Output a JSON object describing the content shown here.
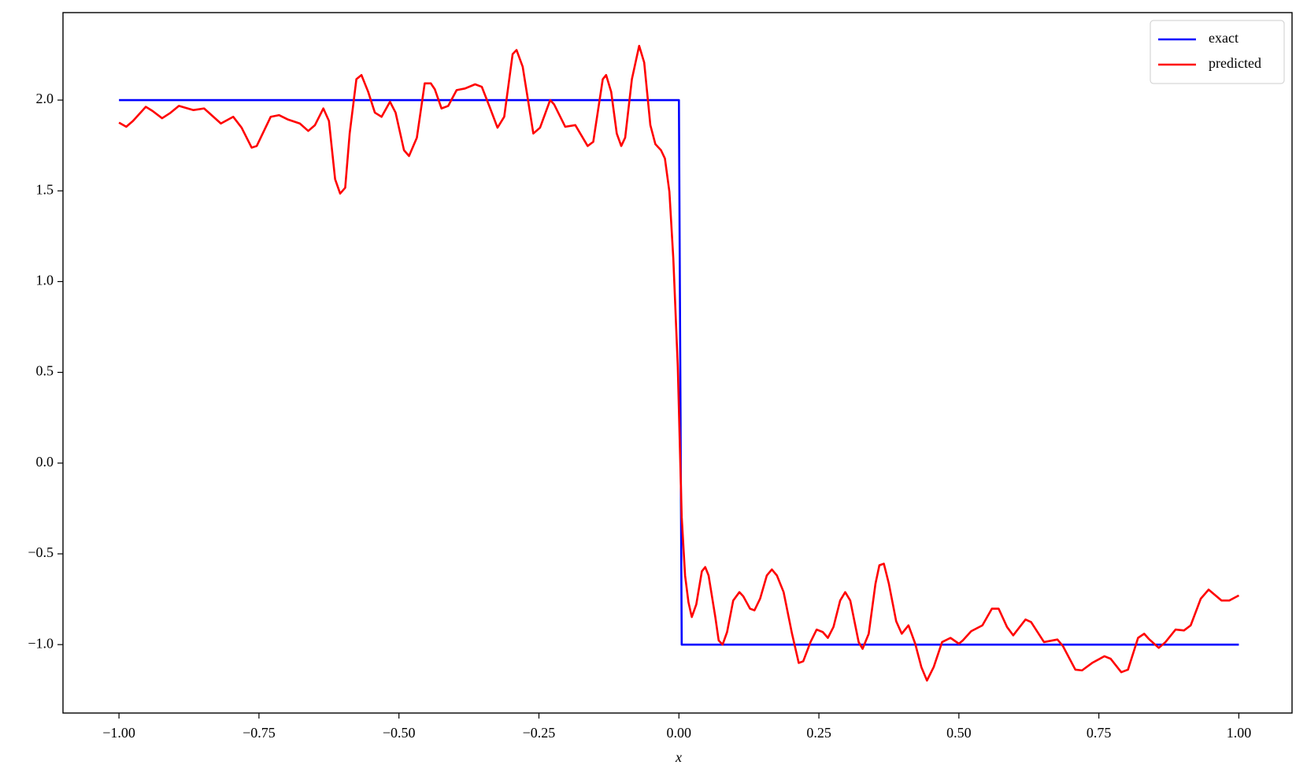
{
  "chart_data": {
    "type": "line",
    "xlabel": "x",
    "xlim": [
      -1.1,
      1.095
    ],
    "ylim": [
      -1.377,
      2.482
    ],
    "xticks": [
      {
        "value": -1,
        "label": "−1.00"
      },
      {
        "value": -0.75,
        "label": "−0.75"
      },
      {
        "value": -0.5,
        "label": "−0.50"
      },
      {
        "value": -0.25,
        "label": "−0.25"
      },
      {
        "value": 0,
        "label": "0.00"
      },
      {
        "value": 0.25,
        "label": "0.25"
      },
      {
        "value": 0.5,
        "label": "0.50"
      },
      {
        "value": 0.75,
        "label": "0.75"
      },
      {
        "value": 1,
        "label": "1.00"
      }
    ],
    "yticks": [
      {
        "value": -1,
        "label": "−1.0"
      },
      {
        "value": -0.5,
        "label": "−0.5"
      },
      {
        "value": 0,
        "label": "0.0"
      },
      {
        "value": 0.5,
        "label": "0.5"
      },
      {
        "value": 1,
        "label": "1.0"
      },
      {
        "value": 1.5,
        "label": "1.5"
      },
      {
        "value": 2,
        "label": "2.0"
      }
    ],
    "legend": "upper right",
    "series": [
      {
        "name": "exact",
        "color": "#0000ff",
        "x": [
          -1,
          0,
          0.005,
          1
        ],
        "values": [
          2,
          2,
          -1,
          -1
        ]
      },
      {
        "name": "predicted",
        "color": "#ff0000",
        "x": [
          -1,
          -0.987,
          -0.975,
          -0.952,
          -0.94,
          -0.923,
          -0.908,
          -0.893,
          -0.867,
          -0.848,
          -0.818,
          -0.796,
          -0.781,
          -0.763,
          -0.754,
          -0.729,
          -0.714,
          -0.699,
          -0.677,
          -0.662,
          -0.65,
          -0.635,
          -0.625,
          -0.614,
          -0.605,
          -0.596,
          -0.588,
          -0.576,
          -0.567,
          -0.555,
          -0.543,
          -0.531,
          -0.516,
          -0.506,
          -0.491,
          -0.482,
          -0.468,
          -0.454,
          -0.443,
          -0.436,
          -0.424,
          -0.412,
          -0.397,
          -0.382,
          -0.364,
          -0.352,
          -0.337,
          -0.324,
          -0.312,
          -0.297,
          -0.29,
          -0.279,
          -0.26,
          -0.248,
          -0.23,
          -0.223,
          -0.203,
          -0.185,
          -0.163,
          -0.153,
          -0.136,
          -0.13,
          -0.121,
          -0.111,
          -0.103,
          -0.096,
          -0.084,
          -0.071,
          -0.062,
          -0.051,
          -0.042,
          -0.032,
          -0.025,
          -0.017,
          -0.01,
          -0.002,
          0.005,
          0.011,
          0.017,
          0.023,
          0.031,
          0.041,
          0.047,
          0.053,
          0.065,
          0.071,
          0.078,
          0.086,
          0.097,
          0.108,
          0.115,
          0.127,
          0.135,
          0.145,
          0.157,
          0.166,
          0.175,
          0.187,
          0.202,
          0.214,
          0.222,
          0.235,
          0.246,
          0.257,
          0.266,
          0.276,
          0.288,
          0.297,
          0.306,
          0.321,
          0.328,
          0.339,
          0.351,
          0.358,
          0.366,
          0.375,
          0.388,
          0.398,
          0.41,
          0.422,
          0.433,
          0.443,
          0.455,
          0.47,
          0.485,
          0.5,
          0.507,
          0.522,
          0.542,
          0.559,
          0.571,
          0.586,
          0.597,
          0.619,
          0.629,
          0.652,
          0.676,
          0.686,
          0.708,
          0.72,
          0.738,
          0.76,
          0.771,
          0.79,
          0.802,
          0.82,
          0.831,
          0.839,
          0.857,
          0.869,
          0.887,
          0.902,
          0.914,
          0.932,
          0.946,
          0.969,
          0.983,
          1
        ],
        "values": [
          1.876,
          1.853,
          1.885,
          1.963,
          1.94,
          1.9,
          1.93,
          1.968,
          1.945,
          1.954,
          1.871,
          1.908,
          1.848,
          1.738,
          1.747,
          1.908,
          1.917,
          1.894,
          1.871,
          1.83,
          1.862,
          1.954,
          1.885,
          1.564,
          1.485,
          1.517,
          1.816,
          2.115,
          2.138,
          2.046,
          1.931,
          1.908,
          1.991,
          1.931,
          1.724,
          1.692,
          1.793,
          2.092,
          2.092,
          2.06,
          1.954,
          1.968,
          2.055,
          2.064,
          2.087,
          2.073,
          1.954,
          1.848,
          1.908,
          2.253,
          2.276,
          2.184,
          1.816,
          1.848,
          2.0,
          1.977,
          1.853,
          1.862,
          1.747,
          1.77,
          2.115,
          2.138,
          2.046,
          1.816,
          1.747,
          1.793,
          2.115,
          2.299,
          2.207,
          1.862,
          1.757,
          1.724,
          1.678,
          1.495,
          1.127,
          0.53,
          -0.297,
          -0.619,
          -0.766,
          -0.848,
          -0.779,
          -0.596,
          -0.573,
          -0.619,
          -0.848,
          -0.977,
          -1.0,
          -0.931,
          -0.757,
          -0.711,
          -0.734,
          -0.802,
          -0.811,
          -0.747,
          -0.619,
          -0.586,
          -0.619,
          -0.711,
          -0.94,
          -1.101,
          -1.092,
          -0.986,
          -0.917,
          -0.931,
          -0.963,
          -0.903,
          -0.757,
          -0.711,
          -0.757,
          -0.986,
          -1.023,
          -0.94,
          -0.665,
          -0.563,
          -0.554,
          -0.665,
          -0.871,
          -0.94,
          -0.894,
          -0.995,
          -1.124,
          -1.198,
          -1.124,
          -0.986,
          -0.963,
          -0.995,
          -0.977,
          -0.926,
          -0.894,
          -0.802,
          -0.802,
          -0.903,
          -0.949,
          -0.862,
          -0.876,
          -0.986,
          -0.972,
          -1.009,
          -1.138,
          -1.142,
          -1.101,
          -1.064,
          -1.078,
          -1.152,
          -1.138,
          -0.963,
          -0.94,
          -0.968,
          -1.018,
          -0.986,
          -0.917,
          -0.922,
          -0.894,
          -0.747,
          -0.697,
          -0.757,
          -0.757,
          -0.729
        ]
      }
    ]
  }
}
